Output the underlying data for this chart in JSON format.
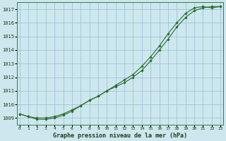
{
  "xlabel": "Graphe pression niveau de la mer (hPa)",
  "bg_color": "#cce8ee",
  "grid_color": "#99bbcc",
  "line_color": "#2d6a2d",
  "x_ticks": [
    0,
    1,
    2,
    3,
    4,
    5,
    6,
    7,
    8,
    9,
    10,
    11,
    12,
    13,
    14,
    15,
    16,
    17,
    18,
    19,
    20,
    21,
    22,
    23
  ],
  "ylim": [
    1008.5,
    1017.5
  ],
  "xlim": [
    -0.3,
    23.3
  ],
  "y_ticks": [
    1009,
    1010,
    1011,
    1012,
    1013,
    1014,
    1015,
    1016,
    1017
  ],
  "line1_x": [
    0,
    1,
    2,
    3,
    4,
    5,
    6,
    7,
    8,
    9,
    10,
    11,
    12,
    13,
    14,
    15,
    16,
    17,
    18,
    19,
    20,
    21,
    22,
    23
  ],
  "line1_y": [
    1009.3,
    1009.1,
    1009.0,
    1009.0,
    1009.1,
    1009.3,
    1009.6,
    1009.9,
    1010.3,
    1010.6,
    1011.0,
    1011.4,
    1011.8,
    1012.2,
    1012.8,
    1013.5,
    1014.3,
    1015.2,
    1016.0,
    1016.7,
    1017.1,
    1017.2,
    1017.1,
    1017.2
  ],
  "line2_x": [
    0,
    1,
    2,
    3,
    4,
    5,
    6,
    7,
    8,
    9,
    10,
    11,
    12,
    13,
    14,
    15,
    16,
    17,
    18,
    19,
    20,
    21,
    22,
    23
  ],
  "line2_y": [
    1009.3,
    1009.1,
    1008.9,
    1008.9,
    1009.0,
    1009.2,
    1009.5,
    1009.9,
    1010.3,
    1010.6,
    1011.0,
    1011.3,
    1011.6,
    1012.0,
    1012.5,
    1013.2,
    1014.0,
    1014.8,
    1015.7,
    1016.4,
    1016.9,
    1017.1,
    1017.2,
    1017.2
  ]
}
